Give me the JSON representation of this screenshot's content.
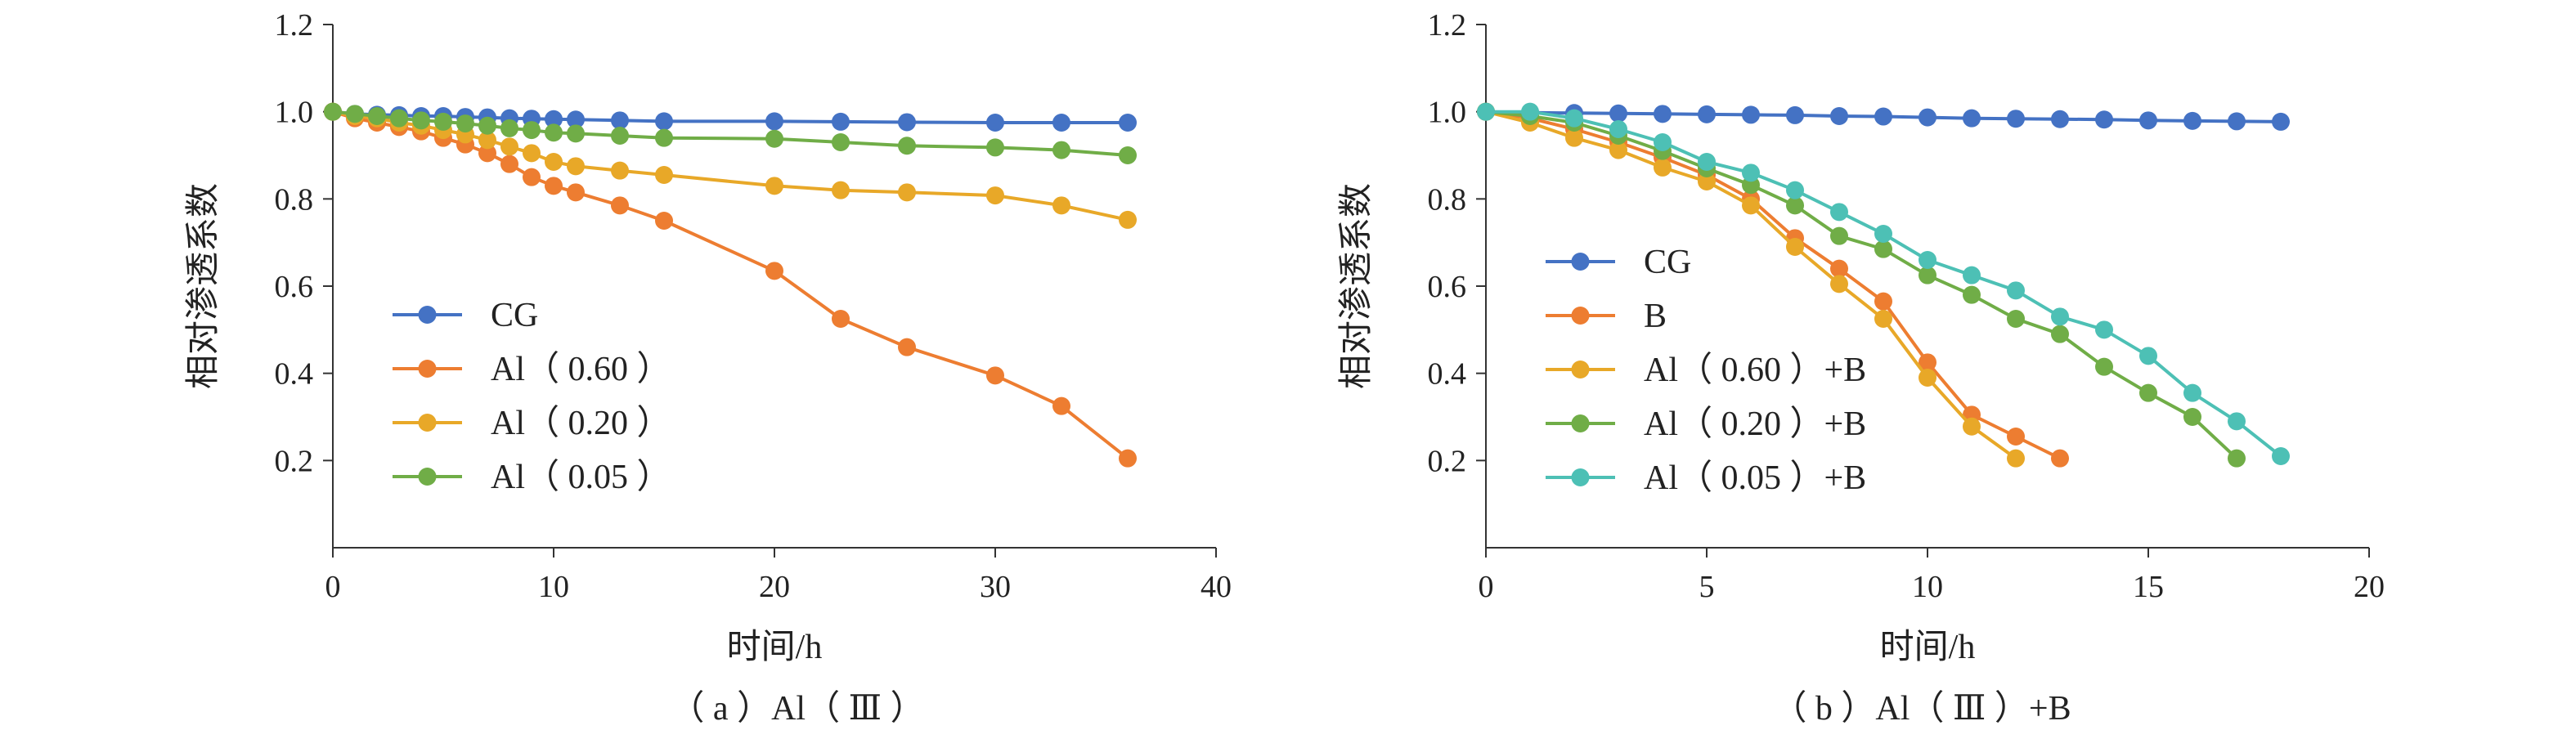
{
  "colors": {
    "CG": "#4472C4",
    "B": "#ED7D31",
    "Al060": "#E8A828",
    "Al020": "#70AD47",
    "Al005": "#4DC0B5"
  },
  "chart_data": [
    {
      "type": "line",
      "caption": "（ a ）Al（ Ⅲ ）",
      "xlabel": "时间/h",
      "ylabel": "相对渗透系数",
      "xlim": [
        0,
        40
      ],
      "ylim": [
        0,
        1.2
      ],
      "xticks": [
        "0",
        "10",
        "20",
        "30",
        "40"
      ],
      "yticks": [
        "0.2",
        "0.4",
        "0.6",
        "0.8",
        "1.0",
        "1.2"
      ],
      "grid": false,
      "legend_position": "lower-left",
      "series": [
        {
          "name": "CG",
          "color_key": "CG",
          "x": [
            0,
            1,
            2,
            3,
            4,
            5,
            6,
            7,
            8,
            9,
            10,
            11,
            13,
            15,
            20,
            23,
            26,
            30,
            33,
            36
          ],
          "y": [
            1.0,
            0.995,
            0.993,
            0.992,
            0.99,
            0.99,
            0.988,
            0.987,
            0.985,
            0.984,
            0.983,
            0.982,
            0.98,
            0.978,
            0.978,
            0.977,
            0.976,
            0.975,
            0.975,
            0.975
          ]
        },
        {
          "name": "Al（ 0.60 ）",
          "color_key": "B",
          "x": [
            0,
            1,
            2,
            3,
            4,
            5,
            6,
            7,
            8,
            9,
            10,
            11,
            13,
            15,
            20,
            23,
            26,
            30,
            33,
            36
          ],
          "y": [
            1.0,
            0.985,
            0.975,
            0.965,
            0.955,
            0.94,
            0.925,
            0.905,
            0.88,
            0.85,
            0.83,
            0.815,
            0.785,
            0.75,
            0.635,
            0.525,
            0.46,
            0.395,
            0.325,
            0.205
          ]
        },
        {
          "name": "Al（ 0.20 ）",
          "color_key": "Al060",
          "x": [
            0,
            1,
            2,
            3,
            4,
            5,
            6,
            7,
            8,
            9,
            10,
            11,
            13,
            15,
            20,
            23,
            26,
            30,
            33,
            36
          ],
          "y": [
            1.0,
            0.99,
            0.985,
            0.975,
            0.968,
            0.958,
            0.948,
            0.935,
            0.92,
            0.905,
            0.885,
            0.875,
            0.865,
            0.855,
            0.83,
            0.82,
            0.815,
            0.808,
            0.785,
            0.752
          ]
        },
        {
          "name": "Al（ 0.05 ）",
          "color_key": "Al020",
          "x": [
            0,
            1,
            2,
            3,
            4,
            5,
            6,
            7,
            8,
            9,
            10,
            11,
            13,
            15,
            20,
            23,
            26,
            30,
            33,
            36
          ],
          "y": [
            1.0,
            0.995,
            0.99,
            0.985,
            0.98,
            0.977,
            0.973,
            0.968,
            0.962,
            0.958,
            0.952,
            0.95,
            0.945,
            0.94,
            0.938,
            0.93,
            0.922,
            0.918,
            0.912,
            0.9
          ]
        }
      ]
    },
    {
      "type": "line",
      "caption": "（ b ）Al（ Ⅲ ）+B",
      "xlabel": "时间/h",
      "ylabel": "相对渗透系数",
      "xlim": [
        0,
        20
      ],
      "ylim": [
        0,
        1.2
      ],
      "xticks": [
        "0",
        "5",
        "10",
        "15",
        "20"
      ],
      "yticks": [
        "0.2",
        "0.4",
        "0.6",
        "0.8",
        "1.0",
        "1.2"
      ],
      "grid": false,
      "legend_position": "lower-left",
      "series": [
        {
          "name": "CG",
          "color_key": "CG",
          "x": [
            0,
            1,
            2,
            3,
            4,
            5,
            6,
            7,
            8,
            9,
            10,
            11,
            12,
            13,
            14,
            15,
            16,
            17,
            18
          ],
          "y": [
            1.0,
            0.998,
            0.997,
            0.996,
            0.995,
            0.994,
            0.993,
            0.992,
            0.99,
            0.989,
            0.987,
            0.985,
            0.984,
            0.983,
            0.982,
            0.98,
            0.979,
            0.978,
            0.977
          ]
        },
        {
          "name": "B",
          "color_key": "B",
          "x": [
            0,
            1,
            2,
            3,
            4,
            5,
            6,
            7,
            8,
            9,
            10,
            11,
            12,
            13
          ],
          "y": [
            1.0,
            0.985,
            0.96,
            0.93,
            0.895,
            0.855,
            0.8,
            0.71,
            0.64,
            0.565,
            0.425,
            0.305,
            0.255,
            0.205
          ]
        },
        {
          "name": "Al（ 0.60 ）+B",
          "color_key": "Al060",
          "x": [
            0,
            1,
            2,
            3,
            4,
            5,
            6,
            7,
            8,
            9,
            10,
            11,
            12
          ],
          "y": [
            1.0,
            0.975,
            0.94,
            0.912,
            0.872,
            0.84,
            0.785,
            0.69,
            0.605,
            0.525,
            0.39,
            0.278,
            0.205
          ]
        },
        {
          "name": "Al（ 0.20 ）+B",
          "color_key": "Al020",
          "x": [
            0,
            1,
            2,
            3,
            4,
            5,
            6,
            7,
            8,
            9,
            10,
            11,
            12,
            13,
            14,
            15,
            16,
            17
          ],
          "y": [
            1.0,
            0.99,
            0.975,
            0.945,
            0.91,
            0.87,
            0.832,
            0.785,
            0.715,
            0.685,
            0.625,
            0.58,
            0.525,
            0.49,
            0.415,
            0.355,
            0.3,
            0.205
          ]
        },
        {
          "name": "Al（ 0.05 ）+B",
          "color_key": "Al005",
          "x": [
            0,
            1,
            2,
            3,
            4,
            5,
            6,
            7,
            8,
            9,
            10,
            11,
            12,
            13,
            14,
            15,
            16,
            17,
            18
          ],
          "y": [
            1.0,
            1.0,
            0.985,
            0.96,
            0.93,
            0.885,
            0.86,
            0.82,
            0.77,
            0.72,
            0.66,
            0.625,
            0.59,
            0.53,
            0.5,
            0.44,
            0.355,
            0.29,
            0.21
          ]
        }
      ]
    }
  ]
}
